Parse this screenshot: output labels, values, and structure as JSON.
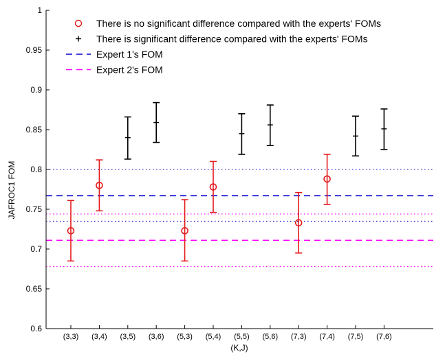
{
  "chart_data": {
    "type": "scatter",
    "xlabel": "(K,J)",
    "ylabel": "JAFROC1 FOM",
    "ylim": [
      0.6,
      1.0
    ],
    "yticks": [
      "0.6",
      "0.65",
      "0.7",
      "0.75",
      "0.8",
      "0.85",
      "0.9",
      "0.95",
      "1"
    ],
    "ytick_values": [
      0.6,
      0.65,
      0.7,
      0.75,
      0.8,
      0.85,
      0.9,
      0.95,
      1.0
    ],
    "categories": [
      "(3,3)",
      "(3,4)",
      "(3,5)",
      "(3,6)",
      "(5,3)",
      "(5,4)",
      "(5,5)",
      "(5,6)",
      "(7,3)",
      "(7,4)",
      "(7,5)",
      "(7,6)"
    ],
    "grid": false,
    "legend_position": "top",
    "series": [
      {
        "name": "There is no significant difference compared with the experts' FOMs",
        "marker": "circle",
        "color": "#e41a1c",
        "points": [
          {
            "category": "(3,3)",
            "value": 0.723,
            "low": 0.685,
            "high": 0.761
          },
          {
            "category": "(3,4)",
            "value": 0.78,
            "low": 0.748,
            "high": 0.812
          },
          {
            "category": "(5,3)",
            "value": 0.723,
            "low": 0.685,
            "high": 0.762
          },
          {
            "category": "(5,4)",
            "value": 0.778,
            "low": 0.746,
            "high": 0.81
          },
          {
            "category": "(7,3)",
            "value": 0.733,
            "low": 0.695,
            "high": 0.771
          },
          {
            "category": "(7,4)",
            "value": 0.788,
            "low": 0.756,
            "high": 0.819
          }
        ]
      },
      {
        "name": "There is significant difference compared with the experts' FOMs",
        "marker": "plus",
        "color": "#000000",
        "points": [
          {
            "category": "(3,5)",
            "value": 0.84,
            "low": 0.813,
            "high": 0.866
          },
          {
            "category": "(3,6)",
            "value": 0.859,
            "low": 0.834,
            "high": 0.884
          },
          {
            "category": "(5,5)",
            "value": 0.845,
            "low": 0.819,
            "high": 0.87
          },
          {
            "category": "(5,6)",
            "value": 0.856,
            "low": 0.83,
            "high": 0.881
          },
          {
            "category": "(7,5)",
            "value": 0.842,
            "low": 0.817,
            "high": 0.867
          },
          {
            "category": "(7,6)",
            "value": 0.851,
            "low": 0.825,
            "high": 0.876
          }
        ]
      }
    ],
    "reference_lines": [
      {
        "name": "Expert 1's FOM",
        "value": 0.767,
        "style": "dashed",
        "color": "#0000cc",
        "in_legend": true
      },
      {
        "name": "Expert 2's FOM",
        "value": 0.711,
        "style": "dashed",
        "color": "#ff00ff",
        "in_legend": true
      },
      {
        "value": 0.8,
        "style": "dotted",
        "color": "#0000cc",
        "in_legend": false
      },
      {
        "value": 0.735,
        "style": "dotted",
        "color": "#0000cc",
        "in_legend": false
      },
      {
        "value": 0.744,
        "style": "dotted",
        "color": "#ff00ff",
        "in_legend": false
      },
      {
        "value": 0.678,
        "style": "dotted",
        "color": "#ff00ff",
        "in_legend": false
      }
    ]
  }
}
